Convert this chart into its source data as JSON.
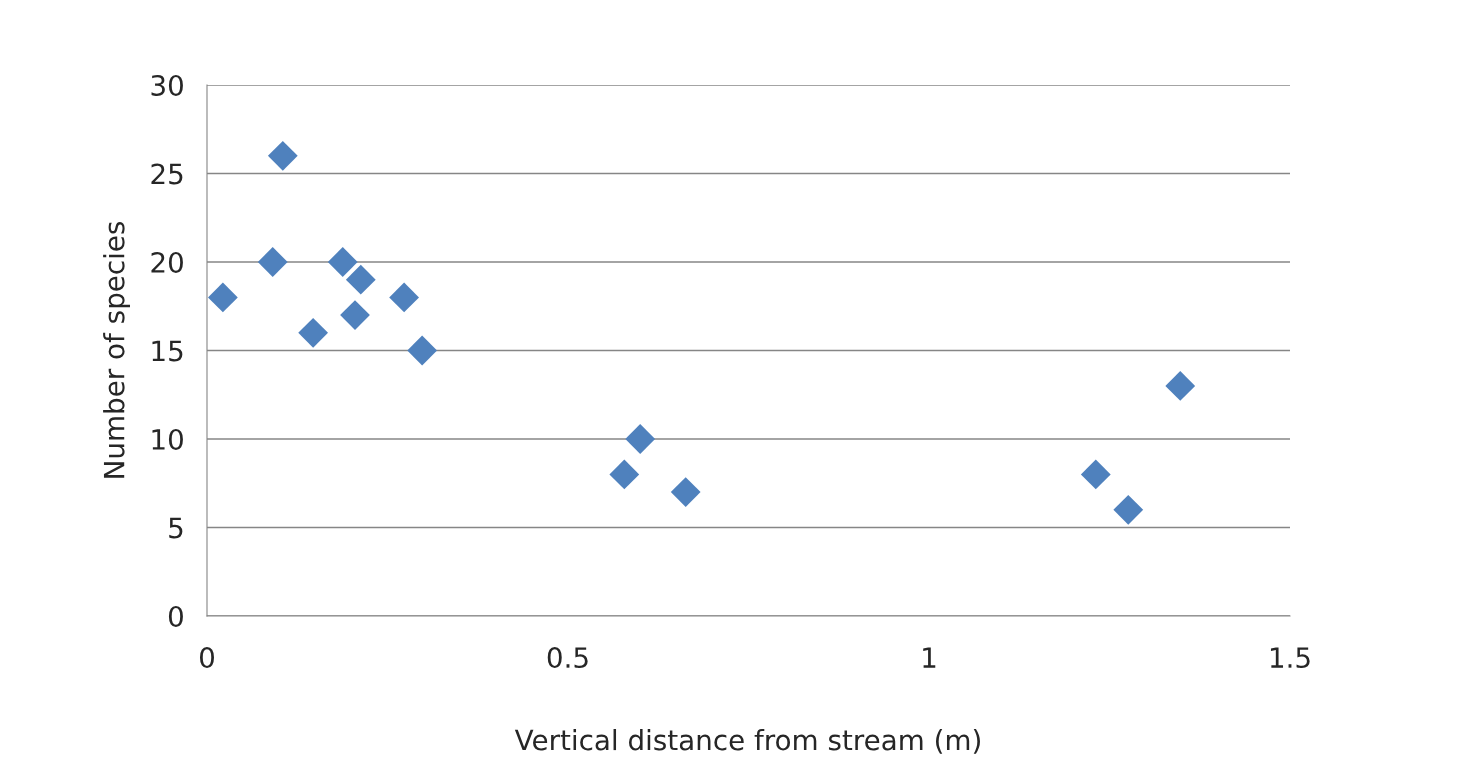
{
  "chart_data": {
    "type": "scatter",
    "xlabel": "Vertical distance from stream (m)",
    "ylabel": "Number of species",
    "x": [
      0.022,
      0.091,
      0.105,
      0.147,
      0.188,
      0.205,
      0.213,
      0.273,
      0.298,
      0.578,
      0.6,
      0.663,
      1.231,
      1.276,
      1.348
    ],
    "series": [
      {
        "color": "#4f81bd",
        "values": [
          18,
          20,
          26,
          16,
          20,
          17,
          19,
          18,
          15,
          8,
          10,
          7,
          8,
          6,
          13
        ]
      }
    ],
    "xlim": [
      0,
      1.5
    ],
    "xticks": [
      0,
      0.5,
      1,
      1.5
    ],
    "ylim": [
      0,
      30
    ],
    "yticks": [
      0,
      5,
      10,
      15,
      20,
      25,
      30
    ],
    "grid": "y",
    "marker": "diamond"
  }
}
